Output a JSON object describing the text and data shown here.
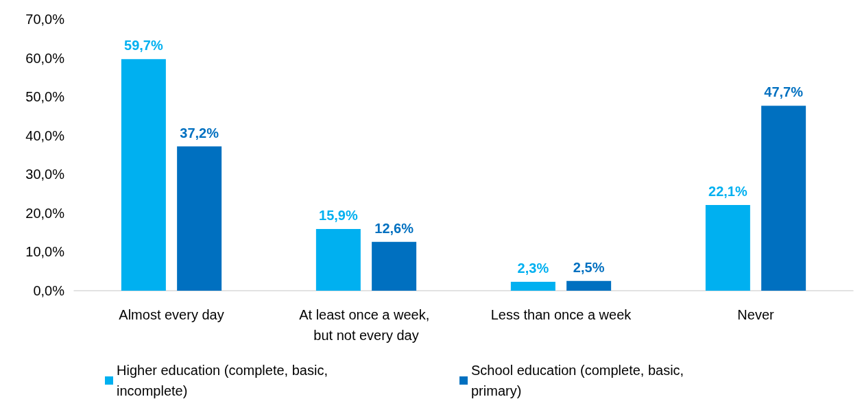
{
  "chart_data": {
    "type": "bar",
    "categories": [
      "Almost every day",
      "At least once a week, but not every day",
      "Less than once a week",
      "Never"
    ],
    "series": [
      {
        "name": "Higher education (complete, basic, incomplete)",
        "color": "#00b0f0",
        "values": [
          59.7,
          15.9,
          2.3,
          22.1
        ],
        "value_labels": [
          "59,7%",
          "15,9%",
          "2,3%",
          "22,1%"
        ]
      },
      {
        "name": "School education (complete, basic, primary)",
        "color": "#0070c0",
        "values": [
          37.2,
          12.6,
          2.5,
          47.7
        ],
        "value_labels": [
          "37,2%",
          "12,6%",
          "2,5%",
          "47,7%"
        ]
      }
    ],
    "ylim": [
      0,
      70
    ],
    "yticks": [
      {
        "value": 0,
        "label": "0,0%"
      },
      {
        "value": 10,
        "label": "10,0%"
      },
      {
        "value": 20,
        "label": "20,0%"
      },
      {
        "value": 30,
        "label": "30,0%"
      },
      {
        "value": 40,
        "label": "40,0%"
      },
      {
        "value": 50,
        "label": "50,0%"
      },
      {
        "value": 60,
        "label": "60,0%"
      },
      {
        "value": 70,
        "label": "70,0%"
      }
    ],
    "grid": false,
    "legend": "bottom"
  }
}
